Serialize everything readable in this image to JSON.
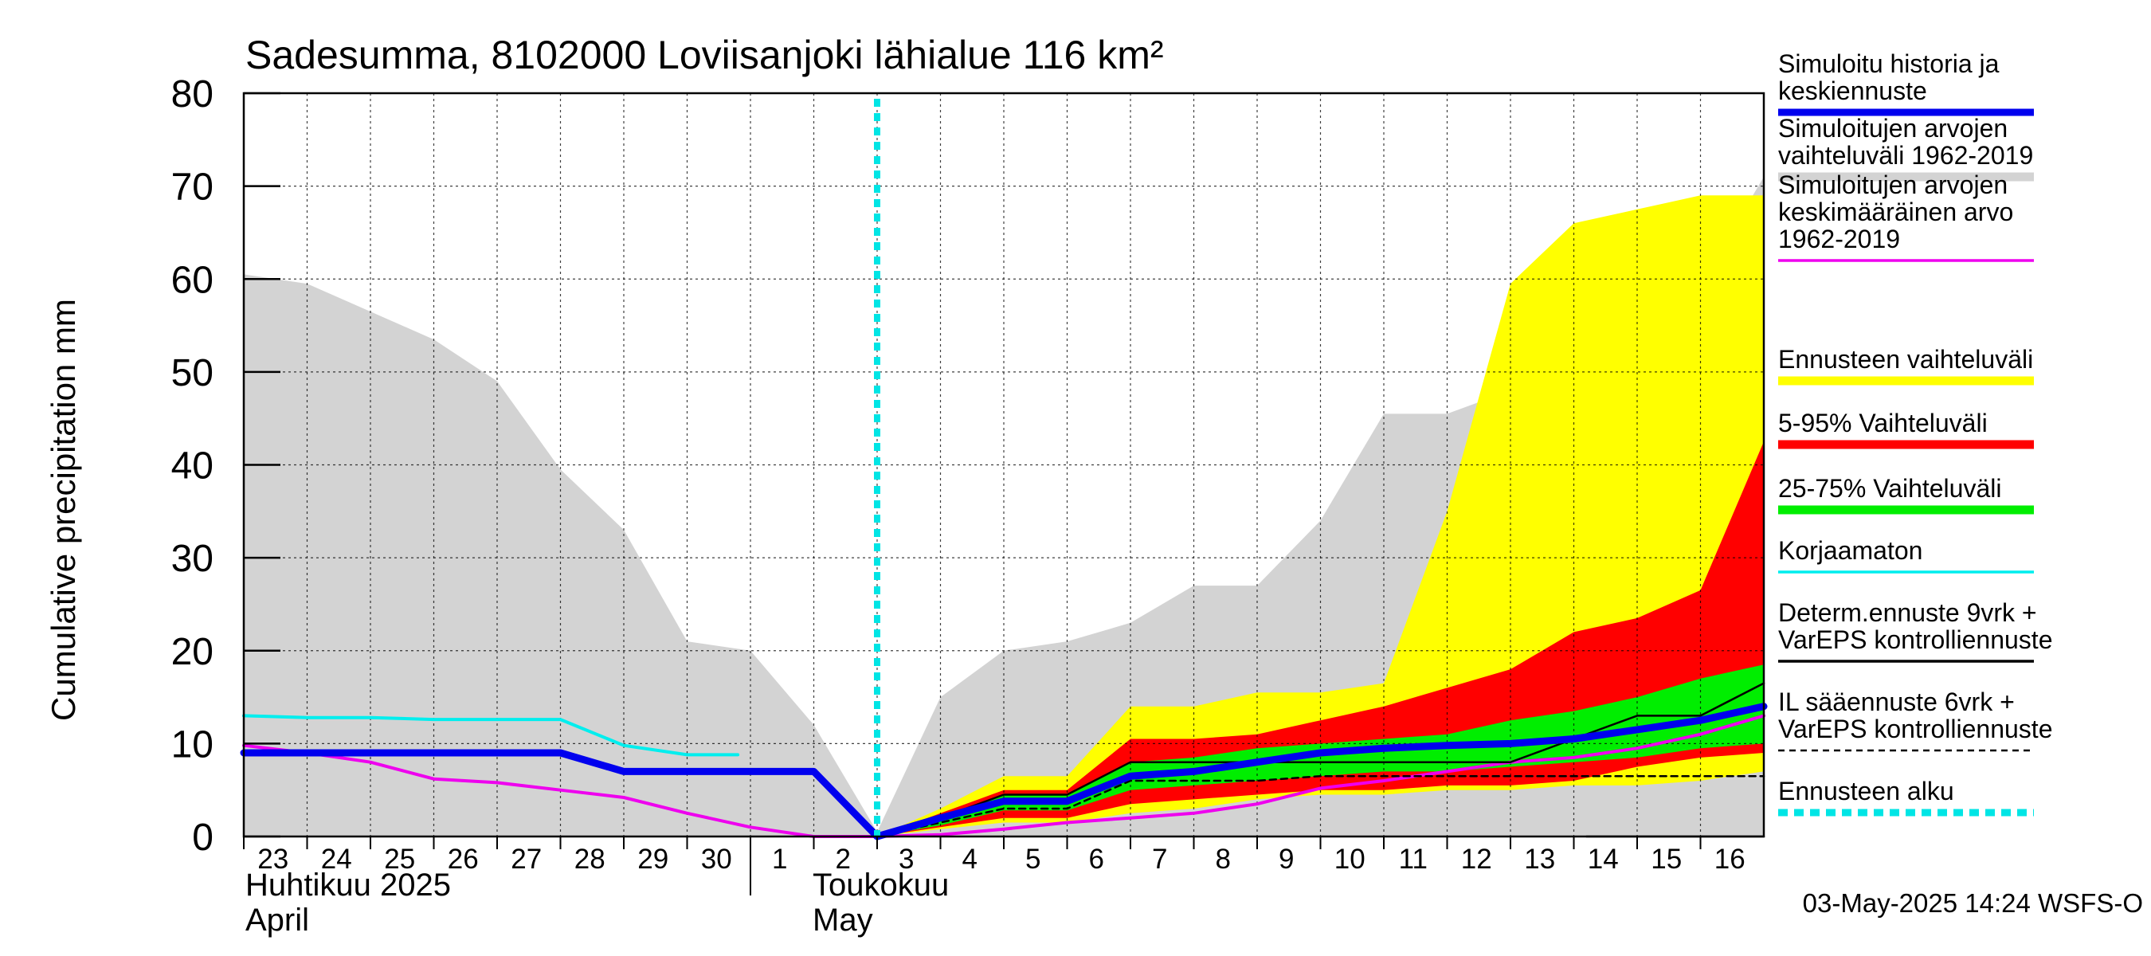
{
  "chart_data": {
    "type": "area",
    "title": "Sadesumma, 8102000 Loviisanjoki lähialue 116 km²",
    "ylabel": "Cumulative precipitation   mm",
    "ylim": [
      0,
      80
    ],
    "yticks": [
      "0",
      "10",
      "20",
      "30",
      "40",
      "50",
      "60",
      "70",
      "80"
    ],
    "day_labels": [
      "23",
      "24",
      "25",
      "26",
      "27",
      "28",
      "29",
      "30",
      "1",
      "2",
      "3",
      "4",
      "5",
      "6",
      "7",
      "8",
      "9",
      "10",
      "11",
      "12",
      "13",
      "14",
      "15",
      "16"
    ],
    "month_labels": {
      "april_fi": "Huhtikuu  2025",
      "april_en": "April",
      "may_fi": "Toukokuu",
      "may_en": "May"
    },
    "x_range_days": [
      0,
      24
    ],
    "forecast_start_day": 10,
    "timestamp": "03-May-2025 14:24 WSFS-O",
    "colors": {
      "history_range": "#d3d3d3",
      "forecast_range": "#ffff00",
      "p5_95": "#ff0000",
      "p25_75": "#00ee00",
      "simulated": "#0000ee",
      "mean": "#ee00ee",
      "uncorrected": "#00eeee",
      "determ": "#000000",
      "il": "#000000",
      "forecast_start": "#00e5e5"
    },
    "series": [
      {
        "name": "history_range_upper",
        "x": [
          0,
          1,
          2,
          3,
          4,
          5,
          6,
          7,
          8,
          9,
          10,
          11,
          12,
          13,
          14,
          15,
          16,
          17,
          18,
          19,
          20,
          21,
          22,
          23,
          24
        ],
        "values": [
          60.5,
          59.5,
          56.5,
          53.5,
          49,
          39.5,
          33,
          21,
          20,
          12,
          0.5,
          15,
          20,
          21,
          23,
          27,
          27,
          34,
          45.5,
          45.5,
          48,
          55.5,
          55.5,
          59.5,
          71
        ]
      },
      {
        "name": "history_range_lower",
        "x": [
          0,
          10,
          24
        ],
        "values": [
          0,
          0,
          0
        ]
      },
      {
        "name": "forecast_range_upper",
        "x": [
          10,
          11,
          12,
          13,
          14,
          15,
          16,
          17,
          18,
          19,
          20,
          21,
          22,
          23,
          24
        ],
        "values": [
          0,
          3,
          6.5,
          6.5,
          14,
          14,
          15.5,
          15.5,
          16.5,
          35,
          59.5,
          66,
          67.5,
          69,
          69
        ]
      },
      {
        "name": "forecast_range_lower",
        "x": [
          10,
          11,
          12,
          13,
          14,
          15,
          16,
          17,
          18,
          19,
          20,
          21,
          22,
          23,
          24
        ],
        "values": [
          0,
          0.8,
          1.5,
          1.5,
          2.5,
          3,
          4,
          4.5,
          4.5,
          5,
          5,
          5.5,
          5.5,
          6,
          7
        ]
      },
      {
        "name": "p5_95_upper",
        "x": [
          10,
          11,
          12,
          13,
          14,
          15,
          16,
          17,
          18,
          19,
          20,
          21,
          22,
          23,
          24
        ],
        "values": [
          0,
          2.5,
          5,
          5,
          10.5,
          10.5,
          11,
          12.5,
          14,
          16,
          18,
          22,
          23.5,
          26.5,
          42.5
        ]
      },
      {
        "name": "p5_95_lower",
        "x": [
          10,
          11,
          12,
          13,
          14,
          15,
          16,
          17,
          18,
          19,
          20,
          21,
          22,
          23,
          24
        ],
        "values": [
          0,
          1,
          2,
          2,
          3.5,
          4,
          4.5,
          5,
          5,
          5.5,
          5.5,
          6,
          7.5,
          8.5,
          9
        ]
      },
      {
        "name": "p25_75_upper",
        "x": [
          10,
          11,
          12,
          13,
          14,
          15,
          16,
          17,
          18,
          19,
          20,
          21,
          22,
          23,
          24
        ],
        "values": [
          0,
          2,
          4.5,
          4.5,
          8,
          8.5,
          9.5,
          10,
          10.5,
          11,
          12.5,
          13.5,
          15,
          17,
          18.5
        ]
      },
      {
        "name": "p25_75_lower",
        "x": [
          10,
          11,
          12,
          13,
          14,
          15,
          16,
          17,
          18,
          19,
          20,
          21,
          22,
          23,
          24
        ],
        "values": [
          0,
          1.2,
          2.8,
          2.8,
          5,
          5.5,
          6,
          6.5,
          7,
          7,
          7.5,
          8,
          8.5,
          9.5,
          10
        ]
      },
      {
        "name": "Simuloitu historia ja keskiennuste",
        "x": [
          0,
          1,
          2,
          3,
          4,
          5,
          6,
          7,
          8,
          9,
          10,
          11,
          12,
          13,
          14,
          15,
          16,
          17,
          18,
          19,
          20,
          21,
          22,
          23,
          24
        ],
        "values": [
          9,
          9,
          9,
          9,
          9,
          9,
          7,
          7,
          7,
          7,
          0,
          2,
          3.8,
          3.8,
          6.5,
          7,
          8,
          9,
          9.5,
          9.8,
          10,
          10.5,
          11.5,
          12.5,
          14
        ]
      },
      {
        "name": "Simuloitujen arvojen keskimääräinen arvo 1962-2019",
        "x": [
          0,
          1,
          2,
          3,
          4,
          5,
          6,
          7,
          8,
          9,
          10,
          11,
          12,
          13,
          14,
          15,
          16,
          17,
          18,
          19,
          20,
          21,
          22,
          23,
          24
        ],
        "values": [
          9.8,
          9,
          8,
          6.2,
          5.8,
          5,
          4.2,
          2.5,
          1,
          0,
          0,
          0.2,
          0.8,
          1.5,
          2,
          2.5,
          3.5,
          5.2,
          6,
          7,
          8,
          8.5,
          9.5,
          11,
          13
        ]
      },
      {
        "name": "Korjaamaton",
        "x": [
          0,
          1,
          2,
          3,
          4,
          5,
          6,
          7,
          7.8
        ],
        "values": [
          13,
          12.8,
          12.8,
          12.6,
          12.6,
          12.6,
          9.8,
          8.8,
          8.8
        ]
      },
      {
        "name": "Determ.ennuste 9vrk + VarEPS kontrolliennuste",
        "x": [
          10,
          11,
          12,
          13,
          14,
          15,
          16,
          17,
          18,
          19,
          20,
          21,
          22,
          23,
          24
        ],
        "values": [
          0,
          2,
          4.5,
          4.5,
          8,
          8,
          8,
          8,
          8,
          8,
          8,
          10.5,
          13,
          13,
          16.5
        ]
      },
      {
        "name": "IL sääennuste 6vrk + VarEPS kontrolliennuste",
        "x": [
          10,
          11,
          12,
          13,
          14,
          15,
          16,
          17,
          18,
          19,
          20,
          21,
          22,
          23,
          24
        ],
        "values": [
          0,
          1.5,
          3,
          3,
          6,
          6,
          6,
          6.5,
          6.5,
          6.5,
          6.5,
          6.5,
          6.5,
          6.5,
          6.5
        ]
      },
      {
        "name": "black_bottom_line",
        "x": [
          21.2,
          24
        ],
        "values": [
          0,
          0
        ]
      }
    ],
    "legend": {
      "placement": "right",
      "entries": [
        {
          "lines": [
            "Simuloitu historia ja",
            "keskiennuste"
          ],
          "key": "simulated",
          "style": "thick"
        },
        {
          "lines": [
            "Simuloitujen arvojen",
            "vaihteluväli 1962-2019"
          ],
          "key": "history_range",
          "style": "thick"
        },
        {
          "lines": [
            "Simuloitujen arvojen",
            "keskimääräinen arvo",
            "   1962-2019"
          ],
          "key": "mean",
          "style": "thin"
        },
        {
          "lines": [
            "Ennusteen vaihteluväli"
          ],
          "key": "forecast_range",
          "style": "thick"
        },
        {
          "lines": [
            "5-95% Vaihteluväli"
          ],
          "key": "p5_95",
          "style": "thick"
        },
        {
          "lines": [
            "25-75% Vaihteluväli"
          ],
          "key": "p25_75",
          "style": "thick"
        },
        {
          "lines": [
            "Korjaamaton"
          ],
          "key": "uncorrected",
          "style": "thin"
        },
        {
          "lines": [
            "Determ.ennuste 9vrk +",
            "VarEPS kontrolliennuste"
          ],
          "key": "determ",
          "style": "thin"
        },
        {
          "lines": [
            "IL sääennuste 6vrk  +",
            "  VarEPS kontrolliennuste"
          ],
          "key": "il",
          "style": "dashed"
        },
        {
          "lines": [
            "Ennusteen alku"
          ],
          "key": "forecast_start",
          "style": "dotted"
        }
      ]
    }
  }
}
